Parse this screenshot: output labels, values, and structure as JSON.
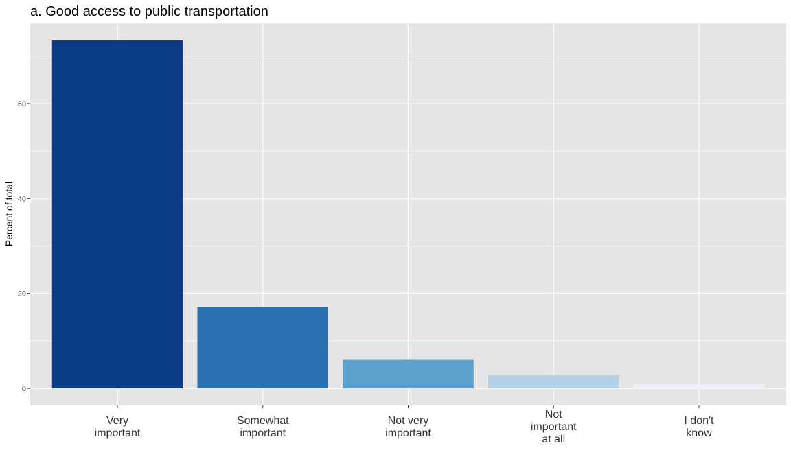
{
  "chart_data": {
    "type": "bar",
    "title": "a. Good access to public transportation",
    "xlabel": "",
    "ylabel": "Percent of total",
    "categories": [
      [
        "Very",
        "important"
      ],
      [
        "Somewhat",
        "important"
      ],
      [
        "Not very",
        "important"
      ],
      [
        "Not",
        "important",
        "at all"
      ],
      [
        "I don't",
        "know"
      ]
    ],
    "values": [
      73.3,
      17.1,
      6.0,
      2.8,
      0.8
    ],
    "colors": [
      "#0c3c87",
      "#2a6fb0",
      "#5ca1cd",
      "#b3d0e6",
      "#eef3fb"
    ],
    "ylim": [
      -3.6,
      76.9
    ],
    "yticks": [
      0,
      20,
      40,
      60
    ],
    "grid": true,
    "panel_background": "#e5e5e5",
    "grid_color": "#ffffff",
    "legend": "none"
  }
}
